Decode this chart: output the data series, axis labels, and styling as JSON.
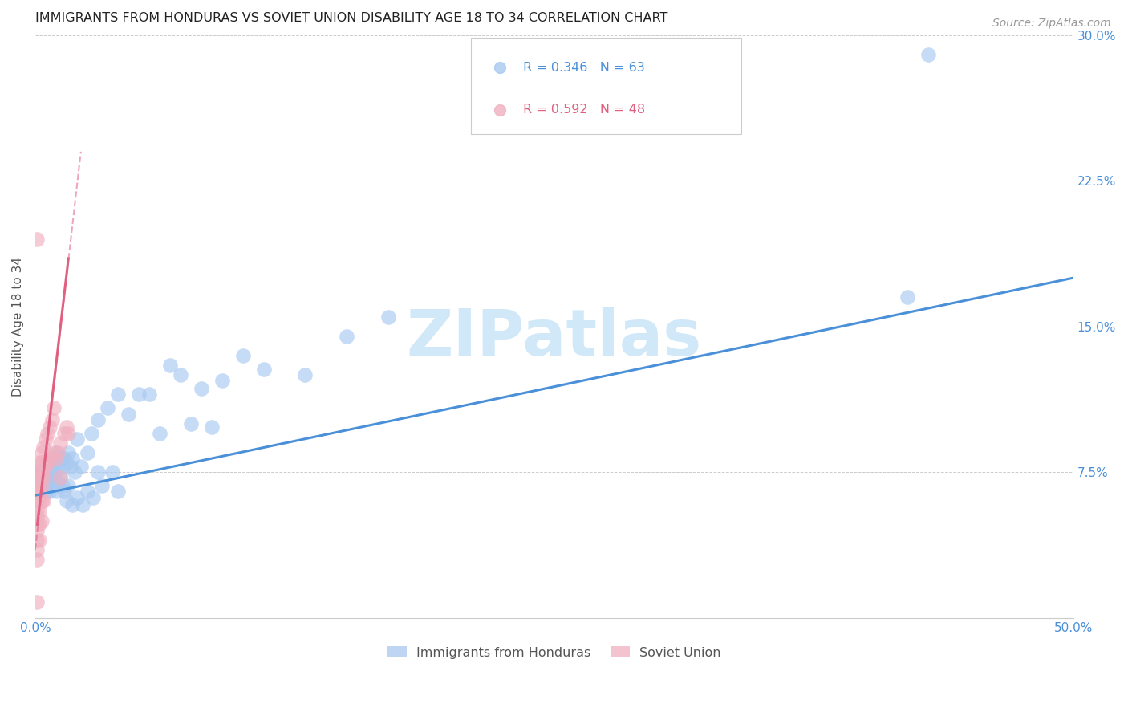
{
  "title": "IMMIGRANTS FROM HONDURAS VS SOVIET UNION DISABILITY AGE 18 TO 34 CORRELATION CHART",
  "source": "Source: ZipAtlas.com",
  "ylabel": "Disability Age 18 to 34",
  "xlim": [
    0.0,
    0.5
  ],
  "ylim": [
    0.0,
    0.3
  ],
  "yticks": [
    0.075,
    0.15,
    0.225,
    0.3
  ],
  "ytick_labels": [
    "7.5%",
    "15.0%",
    "22.5%",
    "30.0%"
  ],
  "xticks": [
    0.0,
    0.1,
    0.2,
    0.3,
    0.4,
    0.5
  ],
  "xtick_labels": [
    "0.0%",
    "",
    "",
    "",
    "",
    "50.0%"
  ],
  "legend_labels": [
    "Immigrants from Honduras",
    "Soviet Union"
  ],
  "legend_R": [
    "R = 0.346",
    "R = 0.592"
  ],
  "legend_N": [
    "N = 63",
    "N = 48"
  ],
  "color_honduras": "#a8c8f0",
  "color_soviet": "#f0b0c0",
  "color_line_honduras": "#4a90d9",
  "color_line_soviet": "#e06080",
  "watermark": "ZIPatlas",
  "watermark_color": "#d0e8f8",
  "background_color": "#ffffff",
  "axis_tick_color": "#4a90d9",
  "trendline_honduras_x0": 0.0,
  "trendline_honduras_y0": 0.063,
  "trendline_honduras_x1": 0.5,
  "trendline_honduras_y1": 0.175,
  "trendline_soviet_solid_x0": 0.001,
  "trendline_soviet_solid_y0": 0.048,
  "trendline_soviet_solid_x1": 0.016,
  "trendline_soviet_solid_y1": 0.185,
  "trendline_soviet_dashed_x0": 0.0,
  "trendline_soviet_dashed_y0": 0.035,
  "trendline_soviet_dashed_x1": 0.022,
  "trendline_soviet_dashed_y1": 0.24,
  "honduras_x": [
    0.003,
    0.004,
    0.005,
    0.005,
    0.006,
    0.006,
    0.007,
    0.007,
    0.008,
    0.008,
    0.009,
    0.009,
    0.01,
    0.01,
    0.01,
    0.011,
    0.011,
    0.012,
    0.012,
    0.013,
    0.013,
    0.014,
    0.014,
    0.015,
    0.015,
    0.016,
    0.016,
    0.017,
    0.018,
    0.018,
    0.019,
    0.02,
    0.02,
    0.022,
    0.023,
    0.025,
    0.025,
    0.027,
    0.028,
    0.03,
    0.03,
    0.032,
    0.035,
    0.037,
    0.04,
    0.04,
    0.045,
    0.05,
    0.055,
    0.06,
    0.065,
    0.07,
    0.075,
    0.08,
    0.085,
    0.09,
    0.1,
    0.11,
    0.13,
    0.15,
    0.17,
    0.42,
    0.43
  ],
  "honduras_y": [
    0.075,
    0.068,
    0.072,
    0.065,
    0.08,
    0.07,
    0.075,
    0.065,
    0.078,
    0.068,
    0.082,
    0.072,
    0.085,
    0.075,
    0.065,
    0.08,
    0.07,
    0.083,
    0.073,
    0.078,
    0.068,
    0.082,
    0.065,
    0.08,
    0.06,
    0.085,
    0.068,
    0.078,
    0.082,
    0.058,
    0.075,
    0.092,
    0.062,
    0.078,
    0.058,
    0.085,
    0.065,
    0.095,
    0.062,
    0.102,
    0.075,
    0.068,
    0.108,
    0.075,
    0.115,
    0.065,
    0.105,
    0.115,
    0.115,
    0.095,
    0.13,
    0.125,
    0.1,
    0.118,
    0.098,
    0.122,
    0.135,
    0.128,
    0.125,
    0.145,
    0.155,
    0.165,
    0.29
  ],
  "soviet_x": [
    0.001,
    0.001,
    0.001,
    0.001,
    0.001,
    0.001,
    0.001,
    0.001,
    0.001,
    0.001,
    0.001,
    0.001,
    0.001,
    0.001,
    0.002,
    0.002,
    0.002,
    0.002,
    0.002,
    0.002,
    0.002,
    0.002,
    0.003,
    0.003,
    0.003,
    0.003,
    0.003,
    0.003,
    0.004,
    0.004,
    0.004,
    0.004,
    0.005,
    0.005,
    0.006,
    0.006,
    0.007,
    0.007,
    0.008,
    0.008,
    0.009,
    0.01,
    0.011,
    0.012,
    0.012,
    0.014,
    0.015,
    0.016
  ],
  "soviet_y": [
    0.075,
    0.072,
    0.068,
    0.065,
    0.06,
    0.055,
    0.052,
    0.048,
    0.045,
    0.04,
    0.035,
    0.03,
    0.008,
    0.195,
    0.08,
    0.075,
    0.07,
    0.065,
    0.06,
    0.055,
    0.048,
    0.04,
    0.085,
    0.08,
    0.075,
    0.068,
    0.06,
    0.05,
    0.088,
    0.08,
    0.072,
    0.06,
    0.092,
    0.078,
    0.095,
    0.08,
    0.098,
    0.082,
    0.102,
    0.085,
    0.108,
    0.082,
    0.085,
    0.09,
    0.072,
    0.095,
    0.098,
    0.095
  ]
}
